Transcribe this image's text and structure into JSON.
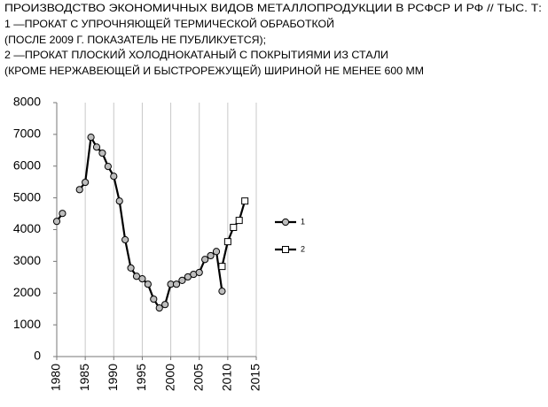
{
  "chart_data": {
    "type": "line",
    "title": "ПРОИЗВОДСТВО ЭКОНОМИЧНЫХ ВИДОВ МЕТАЛЛОПРОДУКЦИИ В РСФСР И РФ // ТЫС. Т:",
    "subtitle": [
      "1 —ПРОКАТ С УПРОЧНЯЮЩЕЙ ТЕРМИЧЕСКОЙ ОБРАБОТКОЙ",
      "(ПОСЛЕ 2009 Г. ПОКАЗАТЕЛЬ НЕ ПУБЛИКУЕТСЯ);",
      "2 —ПРОКАТ ПЛОСКИЙ ХОЛОДНОКАТАНЫЙ С ПОКРЫТИЯМИ ИЗ СТАЛИ",
      "(КРОМЕ НЕРЖАВЕЮЩЕЙ И БЫСТРОРЕЖУЩЕЙ) ШИРИНОЙ НЕ МЕНЕЕ 600 ММ"
    ],
    "x": [
      1980,
      1981,
      1982,
      1983,
      1984,
      1985,
      1986,
      1987,
      1988,
      1989,
      1990,
      1991,
      1992,
      1993,
      1994,
      1995,
      1996,
      1997,
      1998,
      1999,
      2000,
      2001,
      2002,
      2003,
      2004,
      2005,
      2006,
      2007,
      2008,
      2009,
      2010,
      2011,
      2012,
      2013
    ],
    "series": [
      {
        "name": "1",
        "color": "#000000",
        "marker": "circle",
        "values": [
          4260,
          4510,
          null,
          null,
          5260,
          5490,
          6910,
          6600,
          6410,
          5990,
          5680,
          4900,
          3680,
          2790,
          2530,
          2450,
          2280,
          1810,
          1530,
          1640,
          2280,
          2280,
          2400,
          2510,
          2590,
          2650,
          3060,
          3180,
          3310,
          2060,
          null,
          null,
          null,
          null
        ]
      },
      {
        "name": "2",
        "color": "#000000",
        "marker": "square",
        "values": [
          null,
          null,
          null,
          null,
          null,
          null,
          null,
          null,
          null,
          null,
          null,
          null,
          null,
          null,
          null,
          null,
          null,
          null,
          null,
          null,
          null,
          null,
          null,
          null,
          null,
          null,
          null,
          null,
          null,
          2840,
          3620,
          4070,
          4290,
          4900
        ]
      }
    ],
    "xlim": [
      1980,
      2015
    ],
    "xticks": [
      1980,
      1985,
      1990,
      1995,
      2000,
      2005,
      2010,
      2015
    ],
    "ylim": [
      0,
      8000
    ],
    "yticks": [
      0,
      1000,
      2000,
      3000,
      4000,
      5000,
      6000,
      7000,
      8000
    ],
    "grid": "x",
    "legend": "right"
  }
}
